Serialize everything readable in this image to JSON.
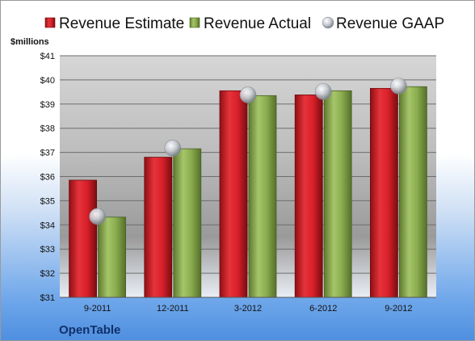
{
  "company": "OpenTable",
  "chart_data": {
    "type": "bar",
    "unit_label": "$millions",
    "categories": [
      "9-2011",
      "12-2011",
      "3-2012",
      "6-2012",
      "9-2012"
    ],
    "series": [
      {
        "name": "Revenue Estimate",
        "kind": "bar",
        "color": "#d8202a",
        "values": [
          35.85,
          36.8,
          39.55,
          39.38,
          39.65
        ]
      },
      {
        "name": "Revenue Actual",
        "kind": "bar",
        "color": "#8aab4e",
        "values": [
          34.32,
          37.15,
          39.35,
          39.55,
          39.72
        ]
      },
      {
        "name": "Revenue GAAP",
        "kind": "marker",
        "color": "#b8bcc4",
        "values": [
          34.35,
          37.18,
          39.38,
          39.52,
          39.75
        ]
      }
    ],
    "ylim": [
      31,
      41
    ],
    "yticks": [
      "$31",
      "$32",
      "$33",
      "$34",
      "$35",
      "$36",
      "$37",
      "$38",
      "$39",
      "$40",
      "$41"
    ],
    "grid": true,
    "legend_position": "top"
  }
}
